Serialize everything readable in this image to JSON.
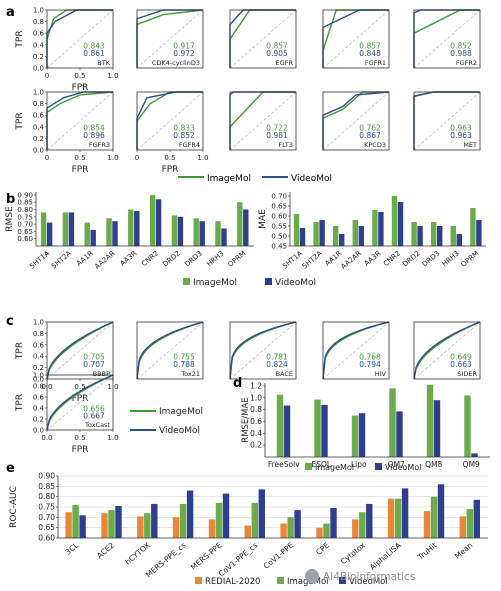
{
  "colors": {
    "imagemol": "#3f9a36",
    "videomol": "#2c4f8c",
    "videomol_bar": "#2e3f8f",
    "redial": "#e8873a",
    "imagemol_bar": "#6aab4b",
    "axis": "#333333",
    "grid": "#cccccc",
    "diag": "#bbbbbb"
  },
  "panel_labels": [
    "a",
    "b",
    "c",
    "d",
    "e"
  ],
  "legend": {
    "imagemol": "ImageMol",
    "videomol": "VideoMol",
    "redial": "REDIAL-2020"
  },
  "watermark": "AI4Bioinformatics",
  "panel_a": {
    "ylabel": "TPR",
    "xlabel": "FPR",
    "xticks": [
      "0",
      "0.5",
      "1.0"
    ],
    "yticks": [
      "0.0",
      "0.2",
      "0.4",
      "0.6",
      "0.8",
      "1.0"
    ],
    "plots": [
      {
        "name": "BTK",
        "auc_img": "0.843",
        "auc_vid": "0.861",
        "img": [
          [
            0,
            0
          ],
          [
            0,
            0.5
          ],
          [
            0.1,
            0.85
          ],
          [
            0.3,
            1
          ],
          [
            1,
            1
          ]
        ],
        "vid": [
          [
            0,
            0
          ],
          [
            0,
            0.6
          ],
          [
            0.12,
            0.8
          ],
          [
            0.45,
            1
          ],
          [
            1,
            1
          ]
        ]
      },
      {
        "name": "CDK4-cyclinD3",
        "auc_img": "0.917",
        "auc_vid": "0.972",
        "img": [
          [
            0,
            0
          ],
          [
            0,
            0.75
          ],
          [
            0.4,
            0.92
          ],
          [
            1,
            1
          ]
        ],
        "vid": [
          [
            0,
            0
          ],
          [
            0,
            0.85
          ],
          [
            0.4,
            1
          ],
          [
            1,
            1
          ]
        ]
      },
      {
        "name": "EGFR",
        "auc_img": "0.857",
        "auc_vid": "0.905",
        "img": [
          [
            0,
            0
          ],
          [
            0,
            0.5
          ],
          [
            0.3,
            1
          ],
          [
            1,
            1
          ]
        ],
        "vid": [
          [
            0,
            0
          ],
          [
            0,
            0.75
          ],
          [
            0.2,
            1
          ],
          [
            1,
            1
          ]
        ]
      },
      {
        "name": "FGFR1",
        "auc_img": "0.857",
        "auc_vid": "0.848",
        "img": [
          [
            0,
            0
          ],
          [
            0,
            0.3
          ],
          [
            0.2,
            1
          ],
          [
            1,
            1
          ]
        ],
        "vid": [
          [
            0,
            0
          ],
          [
            0,
            0.7
          ],
          [
            0.55,
            1
          ],
          [
            1,
            1
          ]
        ]
      },
      {
        "name": "FGFR2",
        "auc_img": "0.852",
        "auc_vid": "0.988",
        "img": [
          [
            0,
            0
          ],
          [
            0,
            0.6
          ],
          [
            0.7,
            1
          ],
          [
            1,
            1
          ]
        ],
        "vid": [
          [
            0,
            0
          ],
          [
            0,
            0.95
          ],
          [
            0.1,
            1
          ],
          [
            1,
            1
          ]
        ]
      },
      {
        "name": "FGFR3",
        "auc_img": "0.854",
        "auc_vid": "0.896",
        "img": [
          [
            0,
            0
          ],
          [
            0,
            0.65
          ],
          [
            0.2,
            0.8
          ],
          [
            0.5,
            0.95
          ],
          [
            1,
            1
          ]
        ],
        "vid": [
          [
            0,
            0
          ],
          [
            0,
            0.72
          ],
          [
            0.25,
            0.9
          ],
          [
            0.55,
            1
          ],
          [
            1,
            1
          ]
        ]
      },
      {
        "name": "FGFR4",
        "auc_img": "0.833",
        "auc_vid": "0.852",
        "img": [
          [
            0,
            0
          ],
          [
            0,
            0.5
          ],
          [
            0.2,
            0.8
          ],
          [
            0.5,
            1
          ],
          [
            1,
            1
          ]
        ],
        "vid": [
          [
            0,
            0
          ],
          [
            0,
            0.55
          ],
          [
            0.15,
            0.9
          ],
          [
            0.6,
            1
          ],
          [
            1,
            1
          ]
        ]
      },
      {
        "name": "FLT3",
        "auc_img": "0.722",
        "auc_vid": "0.981",
        "img": [
          [
            0,
            0
          ],
          [
            0,
            0.4
          ],
          [
            0.5,
            1
          ],
          [
            1,
            1
          ]
        ],
        "vid": [
          [
            0,
            0
          ],
          [
            0,
            0.95
          ],
          [
            0.05,
            1
          ],
          [
            1,
            1
          ]
        ]
      },
      {
        "name": "KPCD3",
        "auc_img": "0.762",
        "auc_vid": "0.867",
        "img": [
          [
            0,
            0
          ],
          [
            0,
            0.55
          ],
          [
            0.3,
            0.7
          ],
          [
            0.6,
            1
          ],
          [
            1,
            1
          ]
        ],
        "vid": [
          [
            0,
            0
          ],
          [
            0,
            0.6
          ],
          [
            0.3,
            0.75
          ],
          [
            0.5,
            0.95
          ],
          [
            1,
            1
          ]
        ]
      },
      {
        "name": "MET",
        "auc_img": "0.963",
        "auc_vid": "0.963",
        "img": [
          [
            0,
            0
          ],
          [
            0,
            0.92
          ],
          [
            0.3,
            1
          ],
          [
            1,
            1
          ]
        ],
        "vid": [
          [
            0,
            0
          ],
          [
            0,
            0.93
          ],
          [
            0.3,
            1
          ],
          [
            1,
            1
          ]
        ]
      }
    ]
  },
  "chart_data": [
    {
      "type": "bar",
      "panel": "b-left",
      "ylabel": "RMSE",
      "ylim": [
        0.55,
        0.92
      ],
      "yticks": [
        "0.60",
        "0.65",
        "0.70",
        "0.75",
        "0.80",
        "0.85",
        "0.90"
      ],
      "categories": [
        "5HT1A",
        "5HT2A",
        "AA1R",
        "AA2AR",
        "AA3R",
        "CNR2",
        "DRD2",
        "DRD3",
        "HRH3",
        "OPRM"
      ],
      "series": [
        {
          "name": "ImageMol",
          "values": [
            0.78,
            0.78,
            0.71,
            0.74,
            0.8,
            0.9,
            0.76,
            0.74,
            0.72,
            0.85
          ]
        },
        {
          "name": "VideoMol",
          "values": [
            0.71,
            0.78,
            0.66,
            0.72,
            0.79,
            0.87,
            0.75,
            0.72,
            0.67,
            0.8
          ]
        }
      ]
    },
    {
      "type": "bar",
      "panel": "b-right",
      "ylabel": "MAE",
      "ylim": [
        0.45,
        0.72
      ],
      "yticks": [
        "0.45",
        "0.50",
        "0.55",
        "0.60",
        "0.65",
        "0.70"
      ],
      "categories": [
        "5HT1A",
        "5HT2A",
        "AA1R",
        "AA2AR",
        "AA3R",
        "CNR2",
        "DRD2",
        "DRD3",
        "HRH3",
        "OPRM"
      ],
      "series": [
        {
          "name": "ImageMol",
          "values": [
            0.61,
            0.57,
            0.55,
            0.58,
            0.63,
            0.7,
            0.57,
            0.57,
            0.55,
            0.64
          ]
        },
        {
          "name": "VideoMol",
          "values": [
            0.54,
            0.58,
            0.51,
            0.55,
            0.62,
            0.67,
            0.55,
            0.55,
            0.51,
            0.58
          ]
        }
      ]
    },
    {
      "type": "line",
      "panel": "c",
      "ylabel": "TPR",
      "xlabel": "FPR",
      "xticks": [
        "0.0",
        "0.5",
        "1.0"
      ],
      "yticks": [
        "0.0",
        "0.2",
        "0.4",
        "0.6",
        "0.8",
        "1.0"
      ],
      "plots": [
        {
          "name": "BBBP",
          "auc_img": "0.705",
          "auc_vid": "0.707",
          "shape": 0.55
        },
        {
          "name": "Tox21",
          "auc_img": "0.755",
          "auc_vid": "0.788",
          "shape": 0.35
        },
        {
          "name": "BACE",
          "auc_img": "0.781",
          "auc_vid": "0.824",
          "shape": 0.3
        },
        {
          "name": "HIV",
          "auc_img": "0.768",
          "auc_vid": "0.794",
          "shape": 0.3
        },
        {
          "name": "SIDER",
          "auc_img": "0.649",
          "auc_vid": "0.663",
          "shape": 0.5
        },
        {
          "name": "ToxCast",
          "auc_img": "0.656",
          "auc_vid": "0.667",
          "shape": 0.55
        }
      ]
    },
    {
      "type": "bar",
      "panel": "d",
      "ylabel": "RMSE/MAE",
      "ylim": [
        0,
        1.25
      ],
      "yticks": [
        "0.2",
        "0.4",
        "0.6",
        "0.8",
        "1.0",
        "1.2"
      ],
      "categories": [
        "FreeSolv",
        "ESOL",
        "Lipo",
        "QM7",
        "QM8",
        "QM9"
      ],
      "series": [
        {
          "name": "ImageMol",
          "values": [
            1.05,
            0.97,
            0.7,
            1.16,
            1.22,
            1.04
          ]
        },
        {
          "name": "VideoMol",
          "values": [
            0.87,
            0.88,
            0.74,
            0.77,
            0.96,
            0.06
          ]
        }
      ]
    },
    {
      "type": "bar",
      "panel": "e",
      "ylabel": "ROC-AUC",
      "ylim": [
        0.6,
        0.9
      ],
      "yticks": [
        "0.60",
        "0.65",
        "0.70",
        "0.75",
        "0.80",
        "0.85",
        "0.90"
      ],
      "categories": [
        "3CL",
        "ACE2",
        "hCYTOX",
        "MERS-PPE_cs",
        "MERS-PPE",
        "CoV1-PPE_cs",
        "CoV1-PPE",
        "CPE",
        "Cytotox",
        "AlphaLISA",
        "TruHit",
        "Mean"
      ],
      "series": [
        {
          "name": "REDIAL-2020",
          "values": [
            0.725,
            0.72,
            0.705,
            0.7,
            0.69,
            0.66,
            0.67,
            0.65,
            0.69,
            0.79,
            0.73,
            0.705
          ]
        },
        {
          "name": "ImageMol",
          "values": [
            0.76,
            0.735,
            0.72,
            0.765,
            0.77,
            0.77,
            0.7,
            0.67,
            0.725,
            0.79,
            0.8,
            0.74
          ]
        },
        {
          "name": "VideoMol",
          "values": [
            0.71,
            0.755,
            0.765,
            0.83,
            0.815,
            0.835,
            0.735,
            0.745,
            0.765,
            0.84,
            0.86,
            0.785
          ]
        }
      ]
    }
  ]
}
